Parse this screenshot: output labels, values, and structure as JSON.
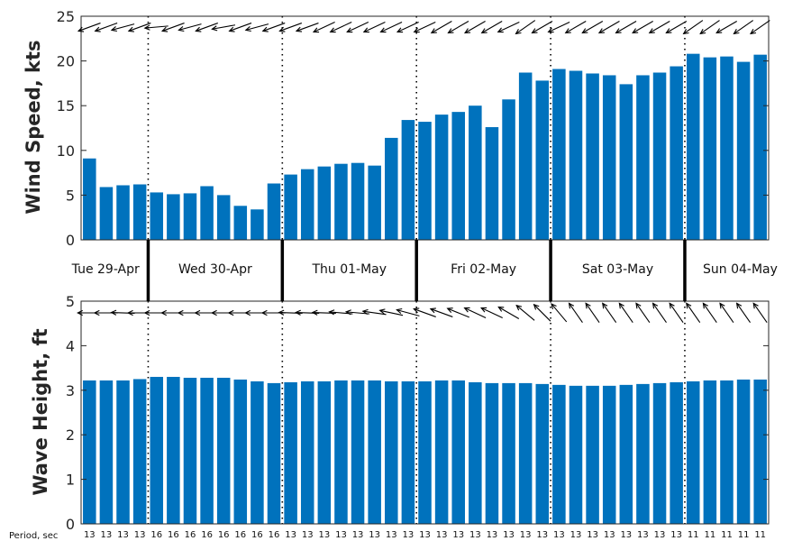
{
  "chart_data": [
    {
      "type": "bar",
      "ylabel": "Wind Speed, kts",
      "ylim": [
        0,
        25
      ],
      "yticks": [
        0,
        5,
        10,
        15,
        20,
        25
      ],
      "color": "#0072BD",
      "values": [
        9.1,
        5.9,
        6.1,
        6.2,
        5.3,
        5.1,
        5.2,
        6.0,
        5.0,
        3.8,
        3.4,
        6.3,
        7.3,
        7.9,
        8.2,
        8.5,
        8.6,
        8.3,
        11.4,
        13.4,
        13.2,
        14.0,
        14.3,
        15.0,
        12.6,
        15.7,
        18.7,
        17.8,
        19.1,
        18.9,
        18.6,
        18.4,
        17.4,
        18.4,
        18.7,
        19.4,
        20.8,
        20.4,
        20.5,
        19.9,
        20.7
      ],
      "direction_arrows": [
        250,
        250,
        255,
        250,
        265,
        250,
        255,
        250,
        260,
        250,
        255,
        250,
        250,
        250,
        245,
        245,
        245,
        245,
        245,
        245,
        245,
        240,
        240,
        240,
        240,
        245,
        235,
        240,
        245,
        240,
        240,
        240,
        240,
        240,
        240,
        240,
        235,
        235,
        240,
        235,
        235
      ]
    },
    {
      "type": "bar",
      "ylabel": "Wave Height, ft",
      "ylim": [
        0,
        5
      ],
      "yticks": [
        0,
        1,
        2,
        3,
        4,
        5
      ],
      "color": "#0072BD",
      "values": [
        3.22,
        3.22,
        3.22,
        3.25,
        3.3,
        3.3,
        3.28,
        3.28,
        3.28,
        3.24,
        3.2,
        3.16,
        3.18,
        3.2,
        3.2,
        3.22,
        3.22,
        3.22,
        3.2,
        3.2,
        3.2,
        3.22,
        3.22,
        3.18,
        3.16,
        3.16,
        3.16,
        3.14,
        3.12,
        3.1,
        3.1,
        3.1,
        3.12,
        3.14,
        3.16,
        3.18,
        3.2,
        3.22,
        3.22,
        3.24,
        3.24
      ],
      "direction_arrows": [
        270,
        270,
        272,
        270,
        270,
        270,
        270,
        270,
        270,
        270,
        270,
        270,
        272,
        272,
        272,
        275,
        275,
        278,
        282,
        285,
        290,
        290,
        292,
        295,
        295,
        300,
        310,
        315,
        320,
        325,
        325,
        325,
        325,
        325,
        325,
        325,
        325,
        325,
        325,
        325,
        325
      ]
    }
  ],
  "days": {
    "labels": [
      "Tue 29-Apr",
      "Wed 30-Apr",
      "Thu 01-May",
      "Fri 02-May",
      "Sat 03-May",
      "Sun 04-May"
    ],
    "boundaries": [
      3.5,
      11.5,
      19.5,
      27.5,
      35.5
    ]
  },
  "period": {
    "label": "Period, sec",
    "values": [
      13,
      13,
      13,
      13,
      16,
      16,
      16,
      16,
      16,
      16,
      16,
      16,
      13,
      13,
      13,
      13,
      13,
      13,
      13,
      13,
      13,
      13,
      13,
      13,
      13,
      13,
      13,
      13,
      13,
      13,
      13,
      13,
      13,
      13,
      13,
      13,
      11,
      11,
      11,
      11,
      11
    ]
  }
}
